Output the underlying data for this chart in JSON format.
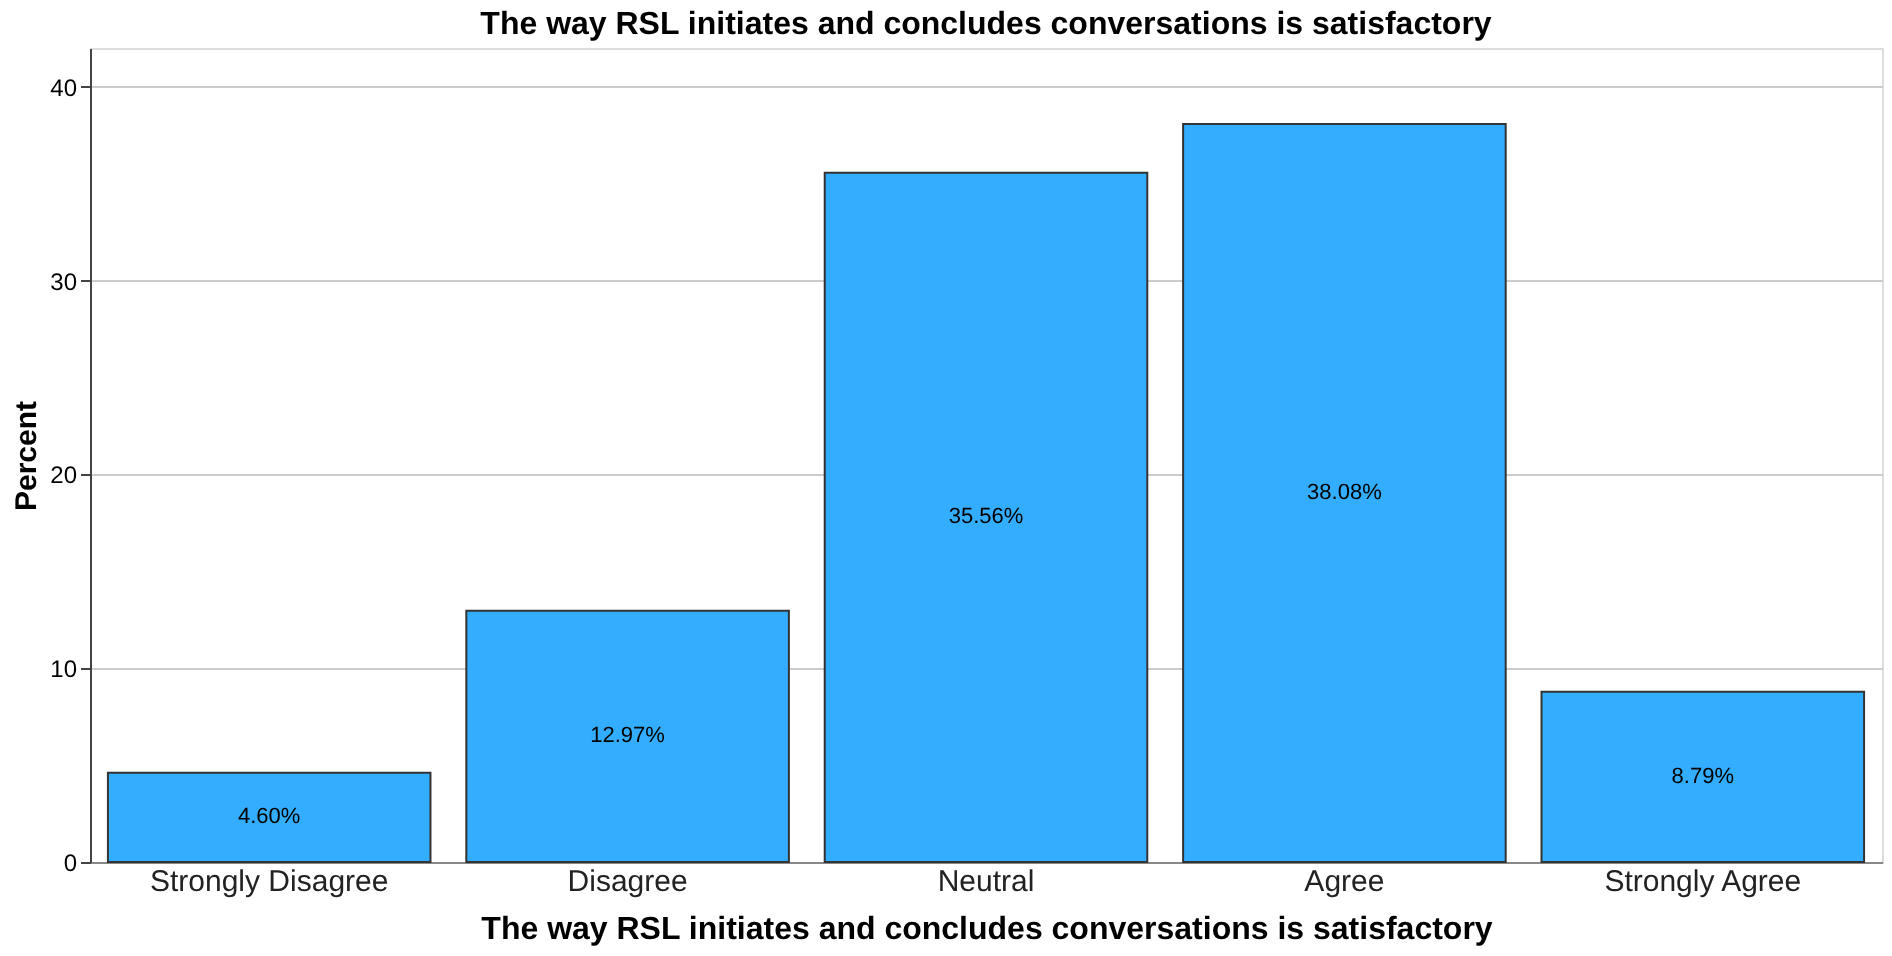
{
  "chart_data": {
    "type": "bar",
    "title": "The way RSL initiates and concludes conversations is satisfactory",
    "xlabel": "The way RSL initiates and concludes conversations is satisfactory",
    "ylabel": "Percent",
    "categories": [
      "Strongly Disagree",
      "Disagree",
      "Neutral",
      "Agree",
      "Strongly Agree"
    ],
    "values": [
      4.6,
      12.97,
      35.56,
      38.08,
      8.79
    ],
    "value_labels": [
      "4.60%",
      "12.97%",
      "35.56%",
      "38.08%",
      "8.79%"
    ],
    "color": "#33adff",
    "ylim": [
      0,
      42
    ],
    "yticks": [
      0,
      10,
      20,
      30,
      40
    ],
    "grid": "y"
  }
}
